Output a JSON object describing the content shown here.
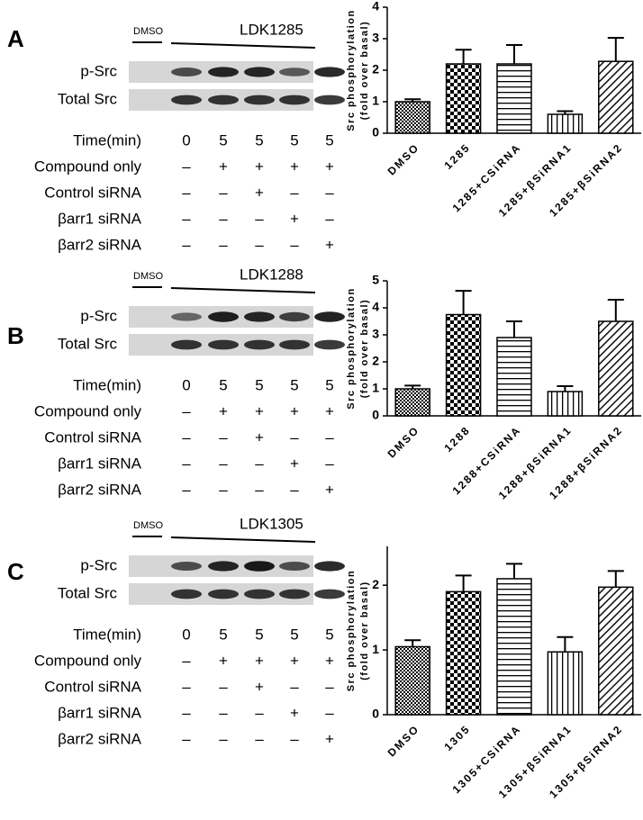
{
  "panels": [
    {
      "letter": "A",
      "dmso": "DMSO",
      "compound": "LDK1285",
      "rows": [
        "p-Src",
        "Total Src"
      ],
      "table": [
        [
          "Time(min)",
          "0",
          "5",
          "5",
          "5",
          "5"
        ],
        [
          "Compound only",
          "–",
          "+",
          "+",
          "+",
          "+"
        ],
        [
          "Control siRNA",
          "–",
          "–",
          "+",
          "–",
          "–"
        ],
        [
          "βarr1 siRNA",
          "–",
          "–",
          "–",
          "+",
          "–"
        ],
        [
          "βarr2 siRNA",
          "–",
          "–",
          "–",
          "–",
          "+"
        ]
      ]
    },
    {
      "letter": "B",
      "dmso": "DMSO",
      "compound": "LDK1288",
      "rows": [
        "p-Src",
        "Total Src"
      ],
      "table": [
        [
          "Time(min)",
          "0",
          "5",
          "5",
          "5",
          "5"
        ],
        [
          "Compound only",
          "–",
          "+",
          "+",
          "+",
          "+"
        ],
        [
          "Control siRNA",
          "–",
          "–",
          "+",
          "–",
          "–"
        ],
        [
          "βarr1 siRNA",
          "–",
          "–",
          "–",
          "+",
          "–"
        ],
        [
          "βarr2 siRNA",
          "–",
          "–",
          "–",
          "–",
          "+"
        ]
      ]
    },
    {
      "letter": "C",
      "dmso": "DMSO",
      "compound": "LDK1305",
      "rows": [
        "p-Src",
        "Total Src"
      ],
      "table": [
        [
          "Time(min)",
          "0",
          "5",
          "5",
          "5",
          "5"
        ],
        [
          "Compound only",
          "–",
          "+",
          "+",
          "+",
          "+"
        ],
        [
          "Control siRNA",
          "–",
          "–",
          "+",
          "–",
          "–"
        ],
        [
          "βarr1 siRNA",
          "–",
          "–",
          "–",
          "+",
          "–"
        ],
        [
          "βarr2 siRNA",
          "–",
          "–",
          "–",
          "–",
          "+"
        ]
      ]
    }
  ],
  "chart_data": [
    {
      "type": "bar",
      "ylabel": [
        "Src phosphorylation",
        "(fold over basal)"
      ],
      "categories": [
        "DMSO",
        "1285",
        "1285+CSiRNA",
        "1285+βSiRNA1",
        "1285+βSiRNA2"
      ],
      "values": [
        1.0,
        2.2,
        2.2,
        0.6,
        2.28
      ],
      "errors": [
        0.08,
        0.45,
        0.6,
        0.1,
        0.75
      ],
      "patterns": [
        "dense-check",
        "check",
        "horizontal",
        "vertical",
        "diagonal"
      ],
      "ylim": [
        0,
        4
      ],
      "yticks": [
        0,
        1,
        2,
        3,
        4
      ]
    },
    {
      "type": "bar",
      "ylabel": [
        "Src phosphorylation",
        "(fold over basal)"
      ],
      "categories": [
        "DMSO",
        "1288",
        "1288+CSiRNA",
        "1288+βSiRNA1",
        "1288+βSiRNA2"
      ],
      "values": [
        1.0,
        3.75,
        2.9,
        0.9,
        3.5
      ],
      "errors": [
        0.12,
        0.88,
        0.6,
        0.2,
        0.8
      ],
      "patterns": [
        "dense-check",
        "check",
        "horizontal",
        "vertical",
        "diagonal"
      ],
      "ylim": [
        0,
        5
      ],
      "yticks": [
        0,
        1,
        2,
        3,
        4,
        5
      ]
    },
    {
      "type": "bar",
      "ylabel": [
        "Src phosphorylation",
        "(fold over basal)"
      ],
      "categories": [
        "DMSO",
        "1305",
        "1305+CSiRNA",
        "1305+βSiRNA1",
        "1305+βSiRNA2"
      ],
      "values": [
        1.05,
        1.9,
        2.1,
        0.97,
        1.97
      ],
      "errors": [
        0.1,
        0.25,
        0.23,
        0.23,
        0.25
      ],
      "patterns": [
        "dense-check",
        "check",
        "horizontal",
        "vertical",
        "diagonal"
      ],
      "ylim": [
        0,
        2.6
      ],
      "yticks": [
        0,
        1,
        2
      ]
    }
  ]
}
